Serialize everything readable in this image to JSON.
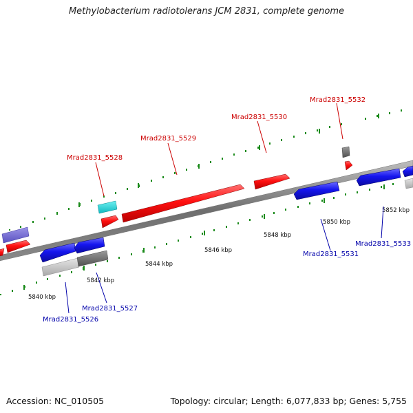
{
  "title": "Methylobacterium radiotolerans JCM 2831, complete genome",
  "footer": {
    "accession": "Accession: NC_010505",
    "summary": "Topology: circular; Length: 6,077,833 bp; Genes: 5,755"
  },
  "colors": {
    "forward_label": "#cc0000",
    "reverse_label": "#0000aa",
    "forward_gene": "#ff0000",
    "reverse_gene": "#1010e8",
    "tick": "#1a8a1a",
    "backbone": "#808080"
  },
  "scale_labels": [
    "5840 kbp",
    "5842 kbp",
    "5844 kbp",
    "5846 kbp",
    "5848 kbp",
    "5850 kbp",
    "5852 kbp"
  ],
  "gene_labels": [
    {
      "text": "Mrad2831_5526",
      "strand": "reverse"
    },
    {
      "text": "Mrad2831_5527",
      "strand": "reverse"
    },
    {
      "text": "Mrad2831_5528",
      "strand": "forward"
    },
    {
      "text": "Mrad2831_5529",
      "strand": "forward"
    },
    {
      "text": "Mrad2831_5530",
      "strand": "forward"
    },
    {
      "text": "Mrad2831_5531",
      "strand": "reverse"
    },
    {
      "text": "Mrad2831_5532",
      "strand": "forward"
    },
    {
      "text": "Mrad2831_5533",
      "strand": "reverse"
    }
  ]
}
